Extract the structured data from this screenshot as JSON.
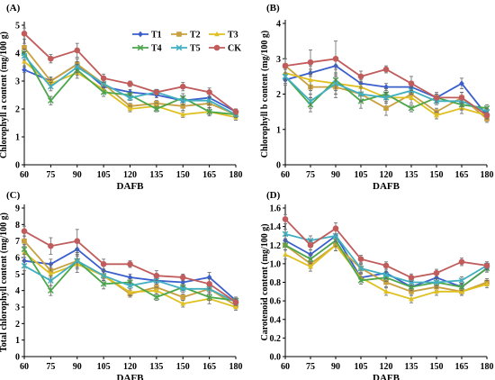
{
  "chart_data": [
    {
      "panel": "(A)",
      "type": "line",
      "xlabel": "DAFB",
      "ylabel": "Chlorophyll a content (mg/100 g)",
      "x": [
        60,
        75,
        90,
        105,
        120,
        135,
        150,
        165,
        180
      ],
      "ylim": [
        0,
        5
      ],
      "yticks": [
        0,
        1,
        2,
        3,
        4,
        5
      ],
      "legend": true,
      "legend_position": "top-right",
      "series": [
        {
          "name": "T1",
          "color": "#3a5fcd",
          "marker": "diamond",
          "values": [
            3.4,
            3.0,
            3.6,
            2.8,
            2.6,
            2.5,
            2.3,
            2.4,
            1.9
          ],
          "err": [
            0.1,
            0.1,
            0.2,
            0.15,
            0.1,
            0.1,
            0.15,
            0.15,
            0.1
          ]
        },
        {
          "name": "T2",
          "color": "#c8a040",
          "marker": "square",
          "values": [
            4.2,
            3.0,
            3.6,
            2.9,
            2.1,
            2.2,
            2.1,
            2.2,
            1.8
          ],
          "err": [
            0.15,
            0.15,
            0.2,
            0.2,
            0.1,
            0.1,
            0.15,
            0.15,
            0.1
          ]
        },
        {
          "name": "T3",
          "color": "#e0c020",
          "marker": "triangle",
          "values": [
            3.7,
            2.9,
            3.3,
            2.7,
            2.0,
            2.1,
            1.8,
            1.9,
            1.7
          ],
          "err": [
            0.15,
            0.15,
            0.2,
            0.15,
            0.1,
            0.1,
            0.1,
            0.15,
            0.1
          ]
        },
        {
          "name": "T4",
          "color": "#4ca64c",
          "marker": "x",
          "values": [
            4.0,
            2.3,
            3.4,
            2.6,
            2.5,
            2.0,
            2.4,
            1.9,
            1.8
          ],
          "err": [
            0.15,
            0.15,
            0.2,
            0.15,
            0.1,
            0.1,
            0.15,
            0.1,
            0.1
          ]
        },
        {
          "name": "T5",
          "color": "#40b0c0",
          "marker": "x",
          "values": [
            3.9,
            2.8,
            3.5,
            2.9,
            2.4,
            2.6,
            2.3,
            2.3,
            1.8
          ],
          "err": [
            0.15,
            0.15,
            0.2,
            0.15,
            0.1,
            0.1,
            0.15,
            0.15,
            0.1
          ]
        },
        {
          "name": "CK",
          "color": "#c05c5c",
          "marker": "circle",
          "values": [
            4.7,
            3.8,
            4.1,
            3.1,
            2.9,
            2.6,
            2.8,
            2.6,
            1.9
          ],
          "err": [
            0.2,
            0.15,
            0.25,
            0.15,
            0.1,
            0.1,
            0.15,
            0.15,
            0.1
          ]
        }
      ]
    },
    {
      "panel": "(B)",
      "type": "line",
      "xlabel": "DAFB",
      "ylabel": "Chlorophyll b content (mg/100 g)",
      "x": [
        60,
        75,
        90,
        105,
        120,
        135,
        150,
        165,
        180
      ],
      "ylim": [
        0,
        4
      ],
      "yticks": [
        0,
        1,
        2,
        3,
        4
      ],
      "series": [
        {
          "name": "T1",
          "color": "#3a5fcd",
          "marker": "diamond",
          "values": [
            2.4,
            2.6,
            2.8,
            2.3,
            2.2,
            2.2,
            1.9,
            2.3,
            1.4
          ],
          "err": [
            0.15,
            0.2,
            0.25,
            0.15,
            0.1,
            0.1,
            0.1,
            0.15,
            0.1
          ]
        },
        {
          "name": "T2",
          "color": "#c8a040",
          "marker": "square",
          "values": [
            2.8,
            2.2,
            2.2,
            2.0,
            1.6,
            2.0,
            1.5,
            1.9,
            1.3
          ],
          "err": [
            0.2,
            0.3,
            0.3,
            0.2,
            0.2,
            0.15,
            0.1,
            0.15,
            0.1
          ]
        },
        {
          "name": "T3",
          "color": "#e0c020",
          "marker": "triangle",
          "values": [
            2.6,
            2.4,
            2.3,
            2.2,
            1.9,
            1.9,
            1.4,
            1.6,
            1.4
          ],
          "err": [
            0.2,
            0.3,
            0.3,
            0.2,
            0.15,
            0.15,
            0.1,
            0.15,
            0.1
          ]
        },
        {
          "name": "T4",
          "color": "#4ca64c",
          "marker": "x",
          "values": [
            2.5,
            1.7,
            2.4,
            1.8,
            2.0,
            1.6,
            1.9,
            1.7,
            1.6
          ],
          "err": [
            0.2,
            0.2,
            0.3,
            0.2,
            0.15,
            0.1,
            0.1,
            0.15,
            0.1
          ]
        },
        {
          "name": "T5",
          "color": "#40b0c0",
          "marker": "x",
          "values": [
            2.5,
            1.8,
            2.3,
            2.0,
            1.9,
            2.1,
            1.8,
            1.8,
            1.5
          ],
          "err": [
            0.2,
            0.2,
            0.3,
            0.2,
            0.15,
            0.1,
            0.1,
            0.15,
            0.1
          ]
        },
        {
          "name": "CK",
          "color": "#c05c5c",
          "marker": "circle",
          "values": [
            2.8,
            2.9,
            3.0,
            2.5,
            2.7,
            2.3,
            1.9,
            1.9,
            1.4
          ],
          "err": [
            0.2,
            0.35,
            0.5,
            0.15,
            0.1,
            0.2,
            0.15,
            0.15,
            0.1
          ]
        }
      ]
    },
    {
      "panel": "(C)",
      "type": "line",
      "xlabel": "DAFB",
      "ylabel": "Total chlorophyll content (mg/100 g)",
      "x": [
        60,
        75,
        90,
        105,
        120,
        135,
        150,
        165,
        180
      ],
      "ylim": [
        0,
        9
      ],
      "yticks": [
        0,
        1,
        2,
        3,
        4,
        5,
        6,
        7,
        8,
        9
      ],
      "series": [
        {
          "name": "T1",
          "color": "#3a5fcd",
          "marker": "diamond",
          "values": [
            5.8,
            5.6,
            6.5,
            5.2,
            4.8,
            4.6,
            4.5,
            4.8,
            3.4
          ],
          "err": [
            0.2,
            0.3,
            0.4,
            0.3,
            0.2,
            0.2,
            0.2,
            0.3,
            0.2
          ]
        },
        {
          "name": "T2",
          "color": "#c8a040",
          "marker": "square",
          "values": [
            7.0,
            5.2,
            5.8,
            4.9,
            3.8,
            4.2,
            3.6,
            4.1,
            3.1
          ],
          "err": [
            0.3,
            0.4,
            0.5,
            0.3,
            0.2,
            0.2,
            0.2,
            0.3,
            0.2
          ]
        },
        {
          "name": "T3",
          "color": "#e0c020",
          "marker": "triangle",
          "values": [
            6.3,
            5.0,
            5.6,
            4.9,
            3.9,
            4.0,
            3.2,
            3.5,
            3.0
          ],
          "err": [
            0.3,
            0.4,
            0.5,
            0.3,
            0.2,
            0.2,
            0.2,
            0.3,
            0.2
          ]
        },
        {
          "name": "T4",
          "color": "#4ca64c",
          "marker": "x",
          "values": [
            6.5,
            4.0,
            5.8,
            4.4,
            4.5,
            3.6,
            4.2,
            3.6,
            3.4
          ],
          "err": [
            0.3,
            0.3,
            0.4,
            0.3,
            0.2,
            0.2,
            0.2,
            0.2,
            0.2
          ]
        },
        {
          "name": "T5",
          "color": "#40b0c0",
          "marker": "x",
          "values": [
            5.5,
            4.6,
            5.8,
            4.9,
            4.3,
            4.6,
            4.1,
            4.1,
            3.3
          ],
          "err": [
            0.3,
            0.3,
            0.4,
            0.3,
            0.2,
            0.2,
            0.2,
            0.2,
            0.2
          ]
        },
        {
          "name": "CK",
          "color": "#c05c5c",
          "marker": "circle",
          "values": [
            7.6,
            6.7,
            7.0,
            5.6,
            5.6,
            4.9,
            4.8,
            4.4,
            3.3
          ],
          "err": [
            0.3,
            0.5,
            0.7,
            0.3,
            0.2,
            0.3,
            0.2,
            0.3,
            0.2
          ]
        }
      ]
    },
    {
      "panel": "(D)",
      "type": "line",
      "xlabel": "DAFB",
      "ylabel": "Carotenoid content (mg/100 g)",
      "x": [
        60,
        75,
        90,
        105,
        120,
        135,
        150,
        165,
        180
      ],
      "ylim": [
        0,
        1.6
      ],
      "yticks": [
        "0.0",
        "0.2",
        "0.4",
        "0.6",
        "0.8",
        "1.0",
        "1.2",
        "1.4",
        "1.6"
      ],
      "series": [
        {
          "name": "T1",
          "color": "#3a5fcd",
          "marker": "diamond",
          "values": [
            1.25,
            1.1,
            1.3,
            0.85,
            0.9,
            0.75,
            0.85,
            0.75,
            0.95
          ],
          "err": [
            0.05,
            0.05,
            0.06,
            0.04,
            0.04,
            0.04,
            0.04,
            0.04,
            0.04
          ]
        },
        {
          "name": "T2",
          "color": "#c8a040",
          "marker": "square",
          "values": [
            1.2,
            1.0,
            1.2,
            0.95,
            0.8,
            0.7,
            0.75,
            0.7,
            0.8
          ],
          "err": [
            0.05,
            0.05,
            0.06,
            0.05,
            0.05,
            0.04,
            0.04,
            0.04,
            0.04
          ]
        },
        {
          "name": "T3",
          "color": "#e0c020",
          "marker": "triangle",
          "values": [
            1.1,
            0.97,
            1.2,
            0.85,
            0.7,
            0.62,
            0.7,
            0.7,
            0.78
          ],
          "err": [
            0.05,
            0.05,
            0.06,
            0.04,
            0.04,
            0.04,
            0.04,
            0.04,
            0.04
          ]
        },
        {
          "name": "T4",
          "color": "#4ca64c",
          "marker": "x",
          "values": [
            1.2,
            1.05,
            1.25,
            0.82,
            0.85,
            0.75,
            0.8,
            0.75,
            0.95
          ],
          "err": [
            0.05,
            0.05,
            0.06,
            0.04,
            0.04,
            0.04,
            0.04,
            0.04,
            0.04
          ]
        },
        {
          "name": "T5",
          "color": "#40b0c0",
          "marker": "x",
          "values": [
            1.32,
            1.25,
            1.3,
            0.95,
            0.88,
            0.8,
            0.8,
            0.82,
            0.98
          ],
          "err": [
            0.05,
            0.05,
            0.06,
            0.04,
            0.04,
            0.04,
            0.04,
            0.04,
            0.04
          ]
        },
        {
          "name": "CK",
          "color": "#c05c5c",
          "marker": "circle",
          "values": [
            1.48,
            1.2,
            1.38,
            1.05,
            0.98,
            0.85,
            0.9,
            1.02,
            0.98
          ],
          "err": [
            0.05,
            0.05,
            0.06,
            0.04,
            0.04,
            0.04,
            0.04,
            0.04,
            0.04
          ]
        }
      ]
    }
  ]
}
